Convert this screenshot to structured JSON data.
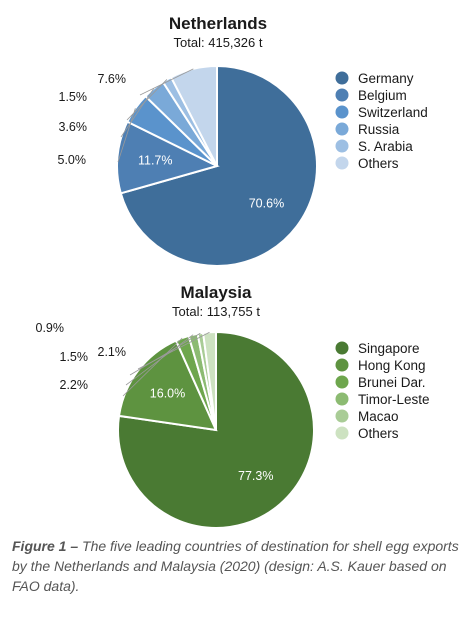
{
  "chart_data": [
    {
      "type": "pie",
      "title": "Netherlands",
      "subtitle": "Total: 415,326 t",
      "categories": [
        "Germany",
        "Belgium",
        "Switzerland",
        "Russia",
        "S. Arabia",
        "Others"
      ],
      "values": [
        70.6,
        11.7,
        5.0,
        3.6,
        1.5,
        7.6
      ],
      "labels": [
        "70.6%",
        "11.7%",
        "5.0%",
        "3.6%",
        "1.5%",
        "7.6%"
      ],
      "colors": [
        "#3f6e9a",
        "#4e7fb3",
        "#5a93cc",
        "#7aa9d8",
        "#9dbfe3",
        "#c3d6ec"
      ],
      "legend": "right"
    },
    {
      "type": "pie",
      "title": "Malaysia",
      "subtitle": "Total: 113,755 t",
      "categories": [
        "Singapore",
        "Hong Kong",
        "Brunei Dar.",
        "Timor-Leste",
        "Macao",
        "Others"
      ],
      "values": [
        77.3,
        16.0,
        2.2,
        1.5,
        0.9,
        2.1
      ],
      "labels": [
        "77.3%",
        "16.0%",
        "2.2%",
        "1.5%",
        "0.9%",
        "2.1%"
      ],
      "colors": [
        "#4a7a33",
        "#5e9340",
        "#6ea64d",
        "#8cbb72",
        "#a9cc96",
        "#cde2c1"
      ],
      "legend": "right"
    }
  ],
  "caption": {
    "head": "Figure 1 –",
    "text": " The five leading countries of destination for shell egg exports by the Netherlands and Malaysia (2020) (design: A.S. Kauer based on FAO data)."
  }
}
